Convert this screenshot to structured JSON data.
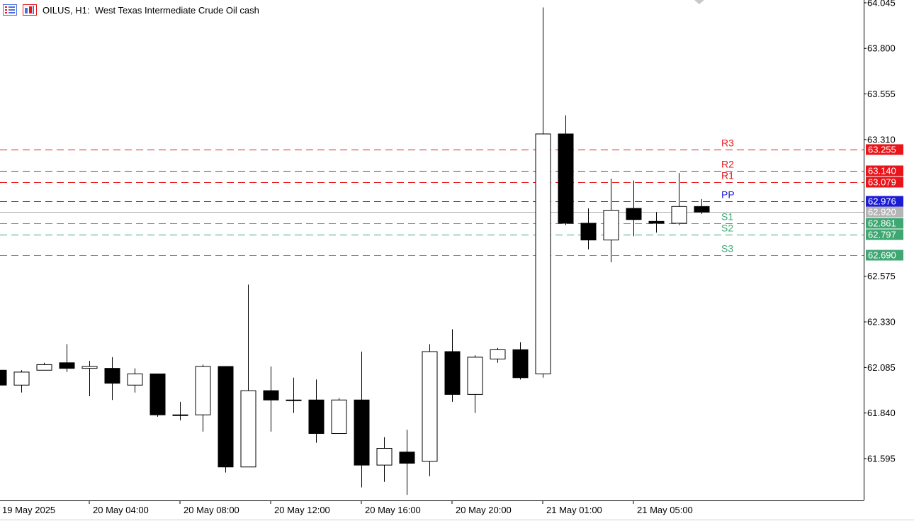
{
  "header": {
    "symbol": "OILUS, H1:",
    "description": "West Texas Intermediate Crude Oil cash"
  },
  "colors": {
    "background": "#ffffff",
    "bull_body": "#ffffff",
    "bear_body": "#000000",
    "wick": "#000000",
    "resistance": "#e8161a",
    "pivot": "#1b1bd6",
    "support": "#3fa772",
    "current_price": "#b5b5b5"
  },
  "chart_data": {
    "type": "candlestick",
    "timeframe": "H1",
    "ylim": [
      61.37,
      64.06
    ],
    "y_ticks": [
      "64.045",
      "63.800",
      "63.555",
      "63.310",
      "62.575",
      "62.330",
      "62.085",
      "61.840",
      "61.595"
    ],
    "x_ticks": [
      "19 May 2025",
      "20 May 04:00",
      "20 May 08:00",
      "20 May 12:00",
      "20 May 16:00",
      "20 May 20:00",
      "21 May 01:00",
      "21 May 05:00"
    ],
    "x_tick_bar_index": [
      0,
      4,
      8,
      12,
      16,
      20,
      24,
      28
    ],
    "candles": [
      {
        "o": 62.07,
        "h": 62.07,
        "l": 61.99,
        "c": 61.99
      },
      {
        "o": 61.99,
        "h": 62.07,
        "l": 61.95,
        "c": 62.06
      },
      {
        "o": 62.07,
        "h": 62.11,
        "l": 62.07,
        "c": 62.1
      },
      {
        "o": 62.11,
        "h": 62.21,
        "l": 62.06,
        "c": 62.08
      },
      {
        "o": 62.08,
        "h": 62.12,
        "l": 61.93,
        "c": 62.09
      },
      {
        "o": 62.08,
        "h": 62.14,
        "l": 61.91,
        "c": 62.0
      },
      {
        "o": 61.99,
        "h": 62.08,
        "l": 61.95,
        "c": 62.05
      },
      {
        "o": 62.05,
        "h": 62.05,
        "l": 61.82,
        "c": 61.83
      },
      {
        "o": 61.83,
        "h": 61.9,
        "l": 61.8,
        "c": 61.83
      },
      {
        "o": 61.83,
        "h": 62.1,
        "l": 61.74,
        "c": 62.09
      },
      {
        "o": 62.09,
        "h": 62.09,
        "l": 61.52,
        "c": 61.55
      },
      {
        "o": 61.55,
        "h": 62.53,
        "l": 61.55,
        "c": 61.96
      },
      {
        "o": 61.96,
        "h": 62.09,
        "l": 61.74,
        "c": 61.91
      },
      {
        "o": 61.91,
        "h": 62.03,
        "l": 61.84,
        "c": 61.91
      },
      {
        "o": 61.91,
        "h": 62.02,
        "l": 61.68,
        "c": 61.73
      },
      {
        "o": 61.73,
        "h": 61.92,
        "l": 61.73,
        "c": 61.91
      },
      {
        "o": 61.91,
        "h": 62.17,
        "l": 61.44,
        "c": 61.56
      },
      {
        "o": 61.56,
        "h": 61.71,
        "l": 61.47,
        "c": 61.65
      },
      {
        "o": 61.63,
        "h": 61.75,
        "l": 61.4,
        "c": 61.57
      },
      {
        "o": 61.58,
        "h": 62.21,
        "l": 61.5,
        "c": 62.17
      },
      {
        "o": 62.17,
        "h": 62.29,
        "l": 61.9,
        "c": 61.94
      },
      {
        "o": 61.94,
        "h": 62.15,
        "l": 61.84,
        "c": 62.14
      },
      {
        "o": 62.13,
        "h": 62.19,
        "l": 62.11,
        "c": 62.18
      },
      {
        "o": 62.18,
        "h": 62.22,
        "l": 62.02,
        "c": 62.03
      },
      {
        "o": 62.05,
        "h": 64.02,
        "l": 62.03,
        "c": 63.34
      },
      {
        "o": 63.34,
        "h": 63.44,
        "l": 62.85,
        "c": 62.86
      },
      {
        "o": 62.86,
        "h": 62.94,
        "l": 62.72,
        "c": 62.77
      },
      {
        "o": 62.77,
        "h": 63.1,
        "l": 62.65,
        "c": 62.93
      },
      {
        "o": 62.94,
        "h": 63.09,
        "l": 62.79,
        "c": 62.88
      },
      {
        "o": 62.87,
        "h": 62.92,
        "l": 62.81,
        "c": 62.86
      },
      {
        "o": 62.86,
        "h": 63.13,
        "l": 62.85,
        "c": 62.95
      },
      {
        "o": 62.95,
        "h": 62.99,
        "l": 62.91,
        "c": 62.92
      }
    ],
    "levels": [
      {
        "name": "R3",
        "value": 63.255,
        "label": "63.255",
        "kind": "resistance"
      },
      {
        "name": "R2",
        "value": 63.14,
        "label": "63.140",
        "kind": "resistance"
      },
      {
        "name": "R1",
        "value": 63.079,
        "label": "63.079",
        "kind": "resistance"
      },
      {
        "name": "PP",
        "value": 62.976,
        "label": "62.976",
        "kind": "pivot"
      },
      {
        "name": "S1",
        "value": 62.861,
        "label": "62.861",
        "kind": "support"
      },
      {
        "name": "S2",
        "value": 62.797,
        "label": "62.797",
        "kind": "support"
      },
      {
        "name": "S3",
        "value": 62.69,
        "label": "62.690",
        "kind": "support"
      }
    ],
    "current_price": {
      "value": 62.92,
      "label": "62.920"
    }
  }
}
